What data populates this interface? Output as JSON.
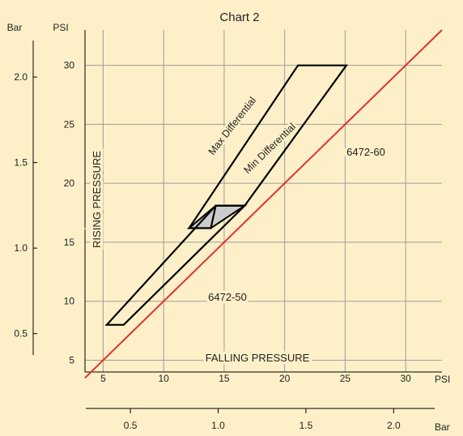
{
  "chart_data": {
    "type": "line",
    "title": "Chart 2",
    "x_unit_psi": "PSI",
    "x_unit_bar": "Bar",
    "y_unit_psi": "PSI",
    "y_unit_bar": "Bar",
    "xlim_psi": [
      3.5,
      33
    ],
    "ylim_psi": [
      4,
      33
    ],
    "x_ticks_psi": [
      5,
      10,
      15,
      20,
      25,
      30
    ],
    "y_ticks_psi": [
      5,
      10,
      15,
      20,
      25,
      30
    ],
    "x_ticks_bar": [
      0.5,
      1.0,
      1.5,
      2.0
    ],
    "y_ticks_bar": [
      0.5,
      1.0,
      1.5,
      2.0
    ],
    "grid": true,
    "axis_label_x": "FALLING PRESSURE",
    "axis_label_y": "RISING PRESSURE",
    "labels": {
      "max_differential": "Max Differential",
      "min_differential": "Min Differential",
      "model_60": "6472-60",
      "model_50": "6472-50"
    },
    "series": [
      {
        "name": "6472-50",
        "kind": "polygon",
        "points": [
          [
            5.3,
            8
          ],
          [
            6.7,
            8
          ],
          [
            16.7,
            18.1
          ],
          [
            14.3,
            18.1
          ]
        ],
        "fill": "none"
      },
      {
        "name": "6472-60",
        "kind": "polygon",
        "points": [
          [
            12.1,
            16.2
          ],
          [
            21.1,
            30
          ],
          [
            25.1,
            30
          ],
          [
            16.7,
            18.1
          ],
          [
            14.3,
            18.1
          ],
          [
            13.9,
            16.2
          ]
        ],
        "fill": "none"
      },
      {
        "name": "overlap",
        "kind": "polygon",
        "points": [
          [
            12.1,
            16.2
          ],
          [
            13.9,
            16.2
          ],
          [
            16.7,
            18.1
          ],
          [
            14.3,
            18.1
          ]
        ],
        "fill": "#cccccc"
      },
      {
        "name": "falling = rising",
        "kind": "line",
        "points": [
          [
            3.5,
            3.5
          ],
          [
            33,
            33
          ]
        ]
      }
    ],
    "colors": {
      "background": "#fdf0c8",
      "grid": "#9c9c9c",
      "axis": "#000000",
      "reference_line": "#e03030",
      "outline": "#000000",
      "overlap_fill": "#cccccc"
    }
  }
}
